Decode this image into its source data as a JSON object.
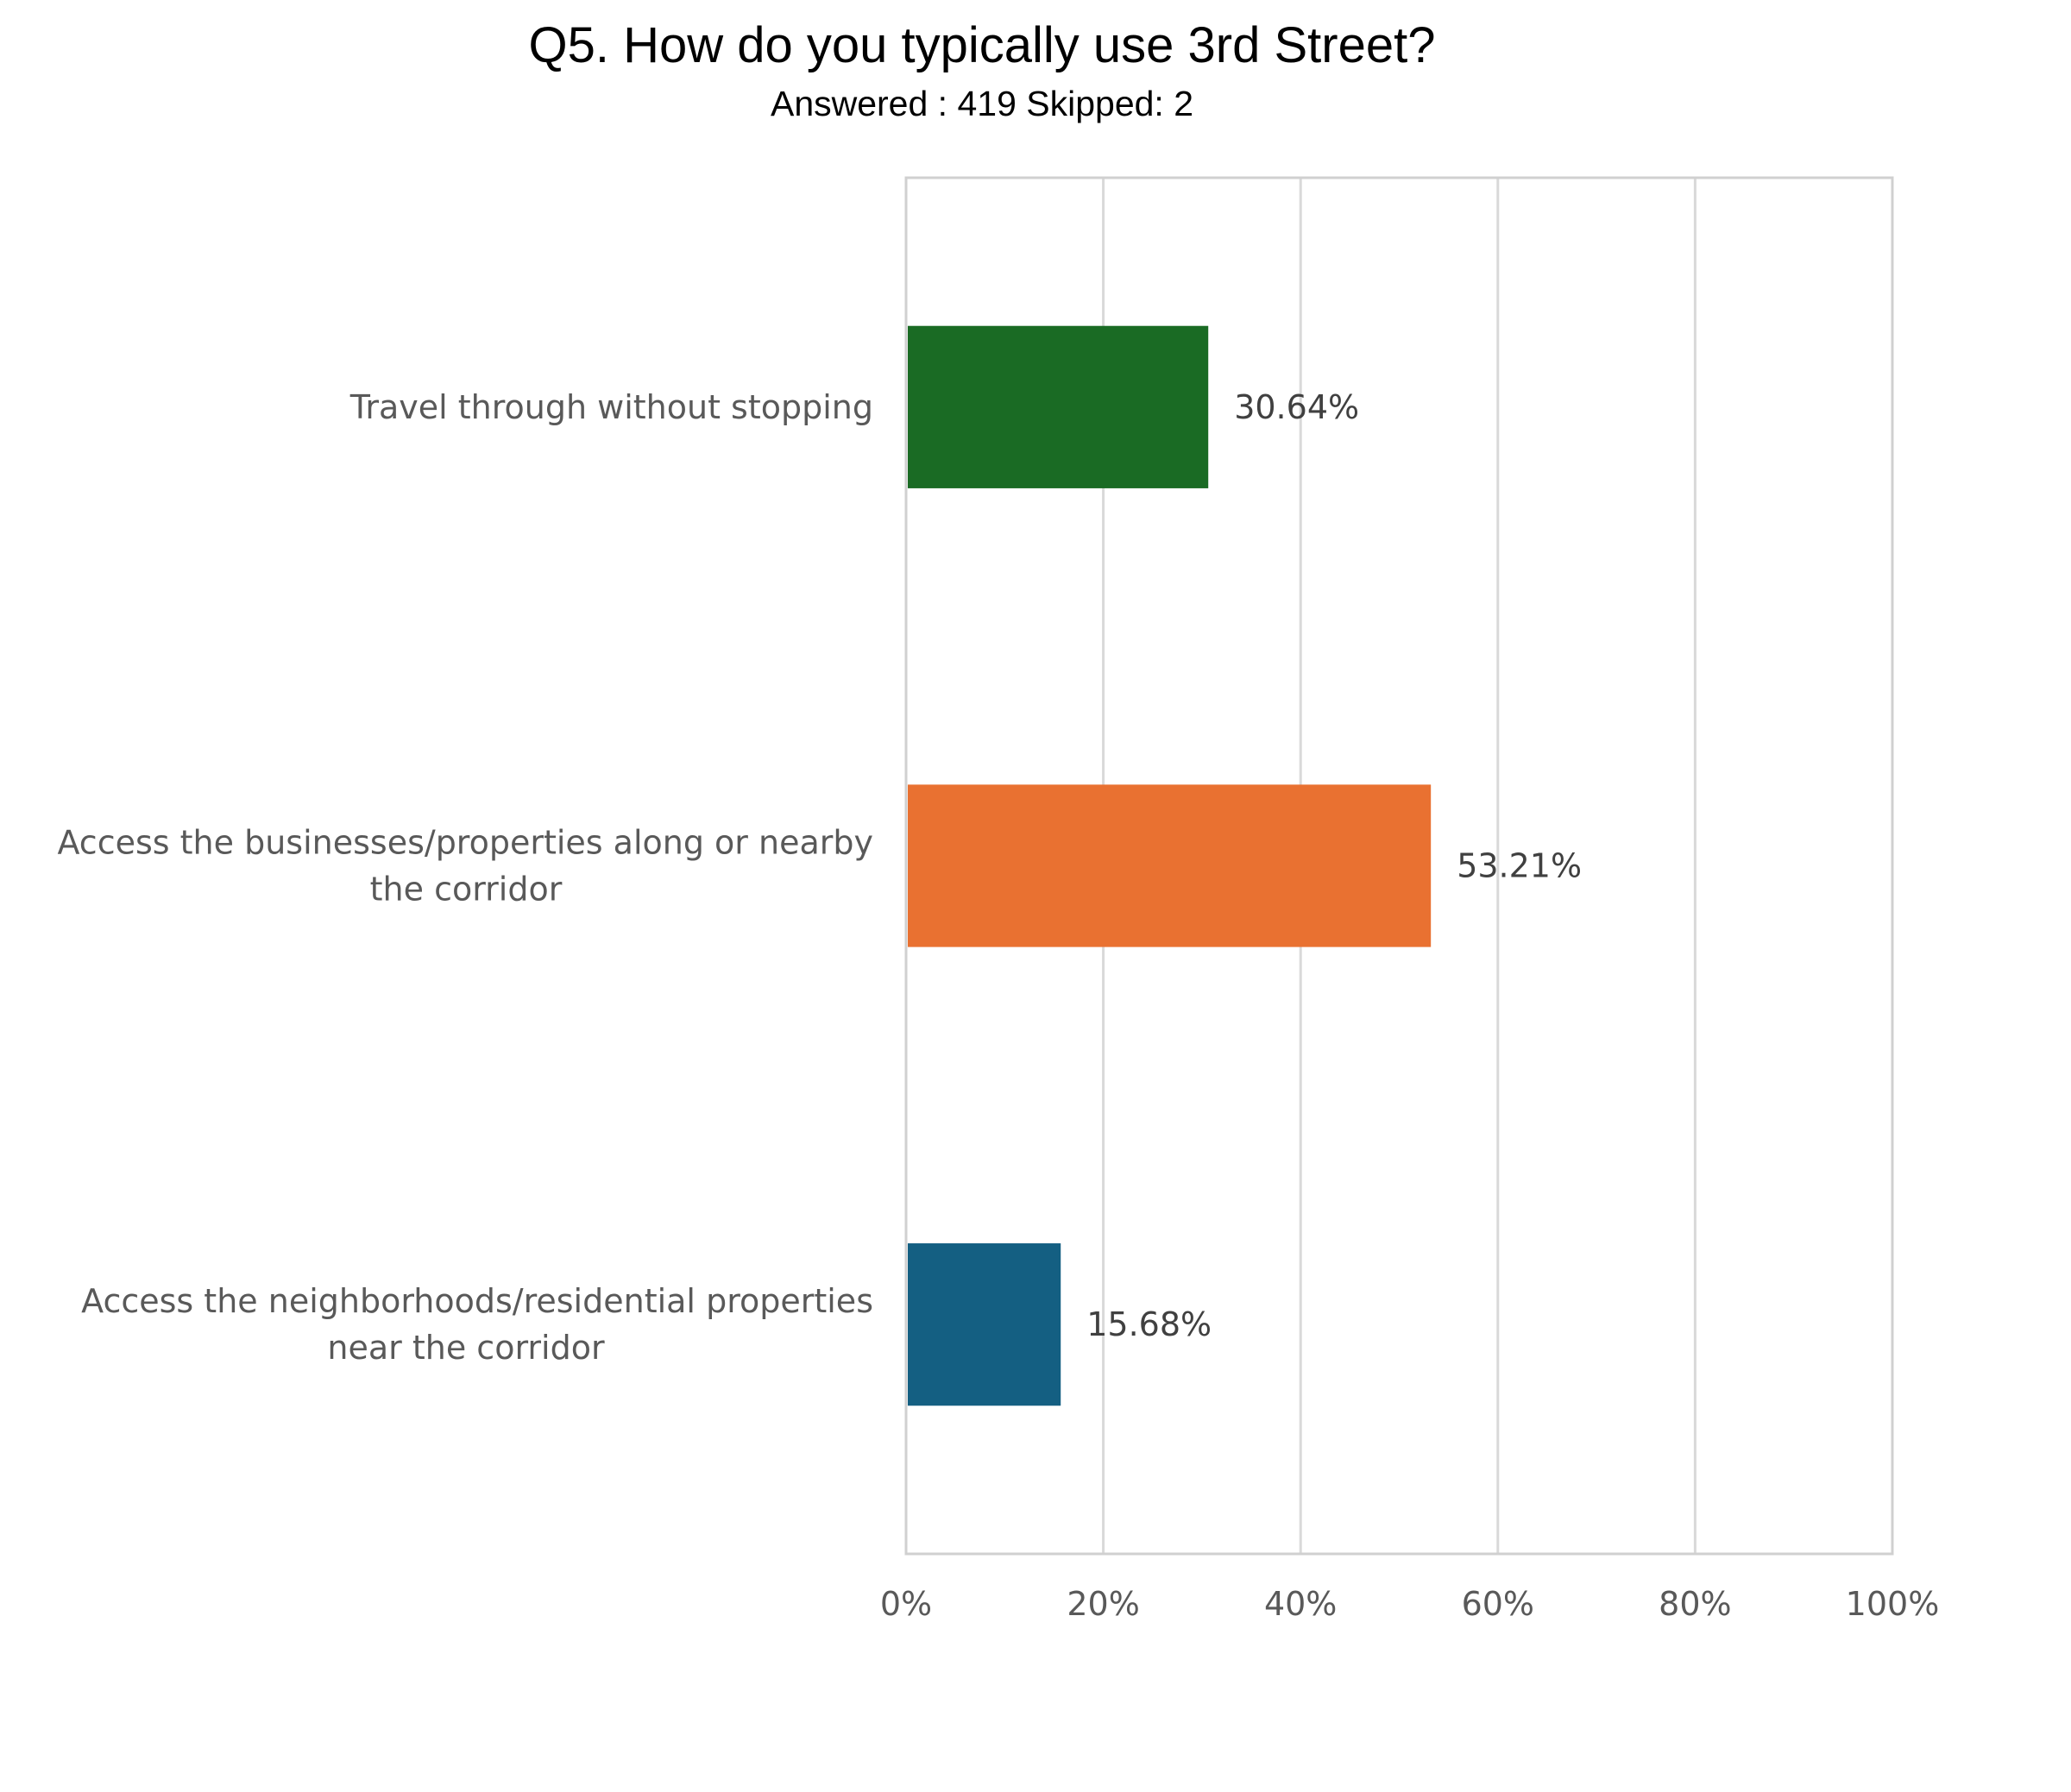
{
  "chart_data": {
    "type": "bar",
    "orientation": "horizontal",
    "title": "Q5. How do you typically use 3rd Street?",
    "subtitle": "Answered : 419  Skipped: 2",
    "categories": [
      [
        "Travel through without stopping"
      ],
      [
        "Access the businesses/properties along or nearby",
        "the corridor"
      ],
      [
        "Access the neighborhoods/residential properties",
        "near the corridor"
      ]
    ],
    "values": [
      30.64,
      53.21,
      15.68
    ],
    "data_labels": [
      "30.64%",
      "53.21%",
      "15.68%"
    ],
    "colors": [
      "#1a6b24",
      "#e97131",
      "#145f82"
    ],
    "xlim": [
      0,
      100
    ],
    "xticks": [
      0,
      20,
      40,
      60,
      80,
      100
    ],
    "xtick_labels": [
      "0%",
      "20%",
      "40%",
      "60%",
      "80%",
      "100%"
    ],
    "grid": true,
    "legend": "none"
  }
}
